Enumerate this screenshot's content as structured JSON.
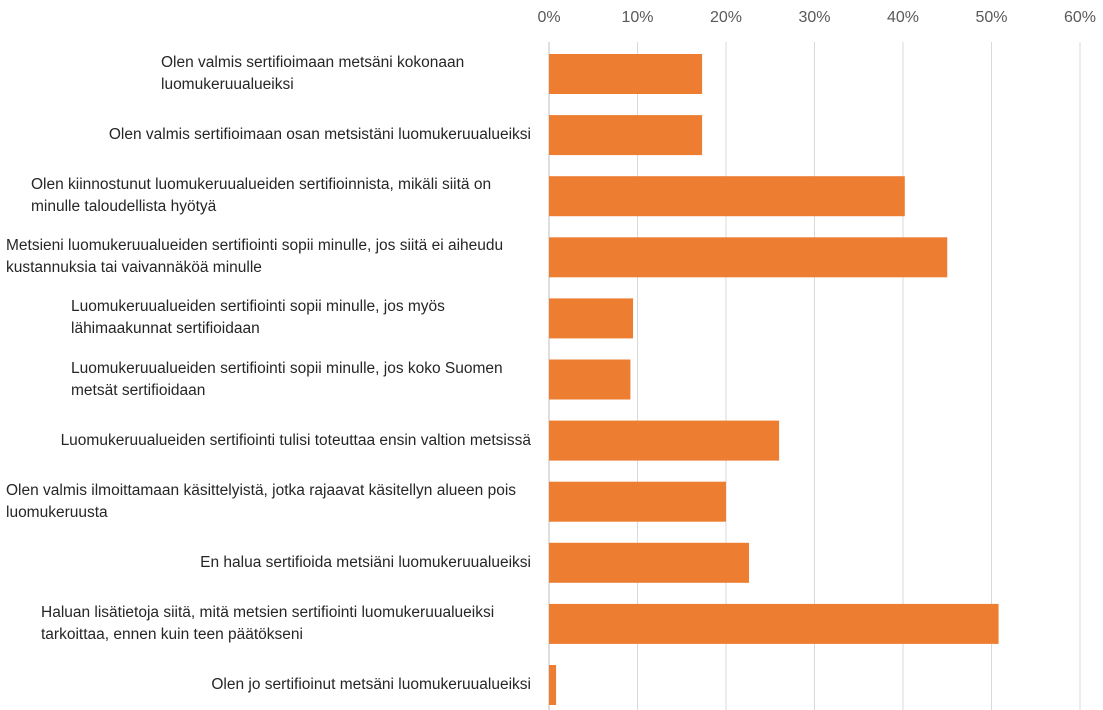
{
  "chart_data": {
    "type": "bar",
    "orientation": "horizontal",
    "categories": [
      "Olen valmis sertifioimaan metsäni kokonaan luomukeruualueiksi",
      "Olen valmis sertifioimaan osan metsistäni luomukeruualueiksi",
      "Olen kiinnostunut luomukeruualueiden sertifioinnista, mikäli siitä on minulle taloudellista hyötyä",
      "Metsieni luomukeruualueiden sertifiointi sopii minulle, jos siitä ei aiheudu kustannuksia tai vaivannäköä minulle",
      "Luomukeruualueiden sertifiointi sopii minulle, jos myös lähimaakunnat sertifioidaan",
      "Luomukeruualueiden sertifiointi sopii minulle, jos koko Suomen metsät sertifioidaan",
      "Luomukeruualueiden sertifiointi tulisi toteuttaa ensin valtion metsissä",
      "Olen valmis ilmoittamaan käsittelyistä, jotka rajaavat käsitellyn alueen pois luomukeruusta",
      "En halua sertifioida metsiäni luomukeruualueiksi",
      "Haluan lisätietoja siitä, mitä metsien sertifiointi luomukeruualueiksi tarkoittaa, ennen kuin teen päätökseni",
      "Olen jo sertifioinut metsäni luomukeruualueiksi"
    ],
    "values": [
      17.3,
      17.3,
      40.2,
      45.0,
      9.5,
      9.2,
      26.0,
      20.0,
      22.6,
      50.8,
      0.8
    ],
    "color": "#ed7d31",
    "xlim": [
      0,
      60
    ],
    "xticks": [
      {
        "value": 0,
        "label": "0%"
      },
      {
        "value": 10,
        "label": "10%"
      },
      {
        "value": 20,
        "label": "20%"
      },
      {
        "value": 30,
        "label": "30%"
      },
      {
        "value": 40,
        "label": "40%"
      },
      {
        "value": 50,
        "label": "50%"
      },
      {
        "value": 60,
        "label": "60%"
      }
    ],
    "grid": true
  }
}
